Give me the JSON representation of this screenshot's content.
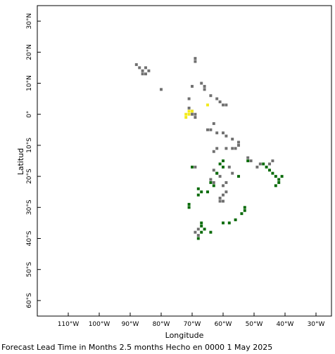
{
  "axes": {
    "x_label": "Longitude",
    "y_label": "Latitud",
    "lon_range": [
      -120,
      -25
    ],
    "lat_range": [
      -65,
      35
    ],
    "x_ticks": [
      {
        "value": -110,
        "label": "110°W"
      },
      {
        "value": -100,
        "label": "100°W"
      },
      {
        "value": -90,
        "label": "90°W"
      },
      {
        "value": -80,
        "label": "80°W"
      },
      {
        "value": -70,
        "label": "70°W"
      },
      {
        "value": -60,
        "label": "60°W"
      },
      {
        "value": -50,
        "label": "50°W"
      },
      {
        "value": -40,
        "label": "40°W"
      },
      {
        "value": -30,
        "label": "30°W"
      }
    ],
    "y_ticks": [
      {
        "value": 30,
        "label": "30°N"
      },
      {
        "value": 20,
        "label": "20°N"
      },
      {
        "value": 10,
        "label": "10°N"
      },
      {
        "value": 0,
        "label": "0°"
      },
      {
        "value": -10,
        "label": "10°S"
      },
      {
        "value": -20,
        "label": "20°S"
      },
      {
        "value": -30,
        "label": "30°S"
      },
      {
        "value": -40,
        "label": "40°S"
      },
      {
        "value": -50,
        "label": "50°S"
      },
      {
        "value": -60,
        "label": "60°S"
      }
    ]
  },
  "colors": {
    "grey": "#707070",
    "green": "#0a6b0a",
    "yellow": "#f2ea1a"
  },
  "cell_groups": {
    "grey": [
      [
        -88,
        16
      ],
      [
        -87,
        15
      ],
      [
        -85,
        15
      ],
      [
        -86,
        14
      ],
      [
        -84,
        14
      ],
      [
        -86,
        13
      ],
      [
        -85,
        13
      ],
      [
        -80,
        8
      ],
      [
        -69,
        18
      ],
      [
        -69,
        17
      ],
      [
        -67,
        10
      ],
      [
        -66,
        9
      ],
      [
        -66,
        8
      ],
      [
        -64,
        6
      ],
      [
        -62,
        5
      ],
      [
        -61,
        4
      ],
      [
        -60,
        3
      ],
      [
        -59,
        3
      ],
      [
        -71,
        5
      ],
      [
        -70,
        9
      ],
      [
        -71,
        2
      ],
      [
        -70,
        1
      ],
      [
        -70,
        0
      ],
      [
        -69,
        0
      ],
      [
        -69,
        -1
      ],
      [
        -63,
        -3
      ],
      [
        -65,
        -5
      ],
      [
        -64,
        -5
      ],
      [
        -62,
        -6
      ],
      [
        -60,
        -6
      ],
      [
        -59,
        -7
      ],
      [
        -57,
        -8
      ],
      [
        -55,
        -9
      ],
      [
        -55,
        -10
      ],
      [
        -56,
        -11
      ],
      [
        -57,
        -11
      ],
      [
        -59,
        -11
      ],
      [
        -62,
        -11
      ],
      [
        -63,
        -12
      ],
      [
        -69,
        -17
      ],
      [
        -63,
        -18
      ],
      [
        -62,
        -19
      ],
      [
        -61,
        -20
      ],
      [
        -58,
        -17
      ],
      [
        -57,
        -19
      ],
      [
        -59,
        -22
      ],
      [
        -60,
        -23
      ],
      [
        -63,
        -22
      ],
      [
        -64,
        -21
      ],
      [
        -59,
        -25
      ],
      [
        -60,
        -26
      ],
      [
        -61,
        -27
      ],
      [
        -60,
        -28
      ],
      [
        -61,
        -28
      ],
      [
        -52,
        -14
      ],
      [
        -51,
        -15
      ],
      [
        -48,
        -16
      ],
      [
        -49,
        -17
      ],
      [
        -44,
        -15
      ],
      [
        -45,
        -16
      ],
      [
        -68,
        -37
      ],
      [
        -69,
        -38
      ],
      [
        -68,
        -39
      ]
    ],
    "green": [
      [
        -70,
        -17
      ],
      [
        -60,
        -15
      ],
      [
        -61,
        -16
      ],
      [
        -60,
        -17
      ],
      [
        -62,
        -19
      ],
      [
        -64,
        -22
      ],
      [
        -63,
        -23
      ],
      [
        -65,
        -25
      ],
      [
        -68,
        -24
      ],
      [
        -67,
        -25
      ],
      [
        -68,
        -26
      ],
      [
        -71,
        -29
      ],
      [
        -71,
        -30
      ],
      [
        -55,
        -20
      ],
      [
        -53,
        -30
      ],
      [
        -53,
        -31
      ],
      [
        -54,
        -32
      ],
      [
        -56,
        -34
      ],
      [
        -58,
        -35
      ],
      [
        -60,
        -35
      ],
      [
        -67,
        -35
      ],
      [
        -67,
        -36
      ],
      [
        -66,
        -37
      ],
      [
        -67,
        -38
      ],
      [
        -68,
        -40
      ],
      [
        -64,
        -38
      ],
      [
        -47,
        -16
      ],
      [
        -46,
        -17
      ],
      [
        -45,
        -18
      ],
      [
        -44,
        -19
      ],
      [
        -43,
        -20
      ],
      [
        -42,
        -21
      ],
      [
        -41,
        -20
      ],
      [
        -42,
        -22
      ],
      [
        -43,
        -23
      ],
      [
        -52,
        -15
      ]
    ],
    "yellow": [
      [
        -72,
        -1
      ],
      [
        -71,
        0
      ],
      [
        -71,
        1
      ],
      [
        -72,
        0
      ],
      [
        -70,
        1
      ],
      [
        -65,
        3
      ]
    ]
  },
  "footer": "Forecast Lead Time in Months 2.5 months Hecho en 0000 1 May 2025"
}
